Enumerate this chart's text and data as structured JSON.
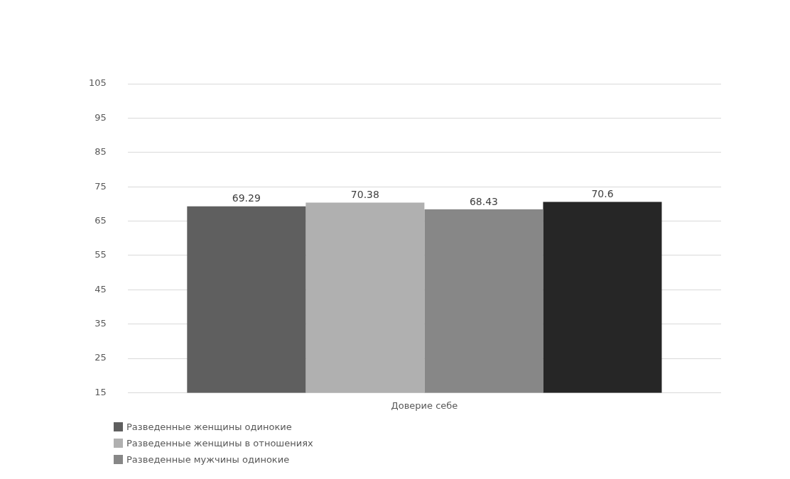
{
  "chart_data": {
    "type": "bar",
    "categories": [
      "Доверие себе"
    ],
    "series": [
      {
        "name": "Разведенные женщины одинокие",
        "color": "#5f5f5f",
        "values": [
          69.29
        ]
      },
      {
        "name": "Разведенные женщины в отношениях",
        "color": "#b0b0b0",
        "values": [
          70.38
        ]
      },
      {
        "name": "Разведенные мужчины одинокие",
        "color": "#878787",
        "values": [
          68.43
        ]
      },
      {
        "color": "#262626",
        "values": [
          70.6
        ]
      }
    ],
    "ylim": [
      15,
      105
    ],
    "yticks": [
      15,
      25,
      35,
      45,
      55,
      65,
      75,
      85,
      95,
      105
    ],
    "grid": "y",
    "legend": "bottom",
    "data_labels": true
  }
}
